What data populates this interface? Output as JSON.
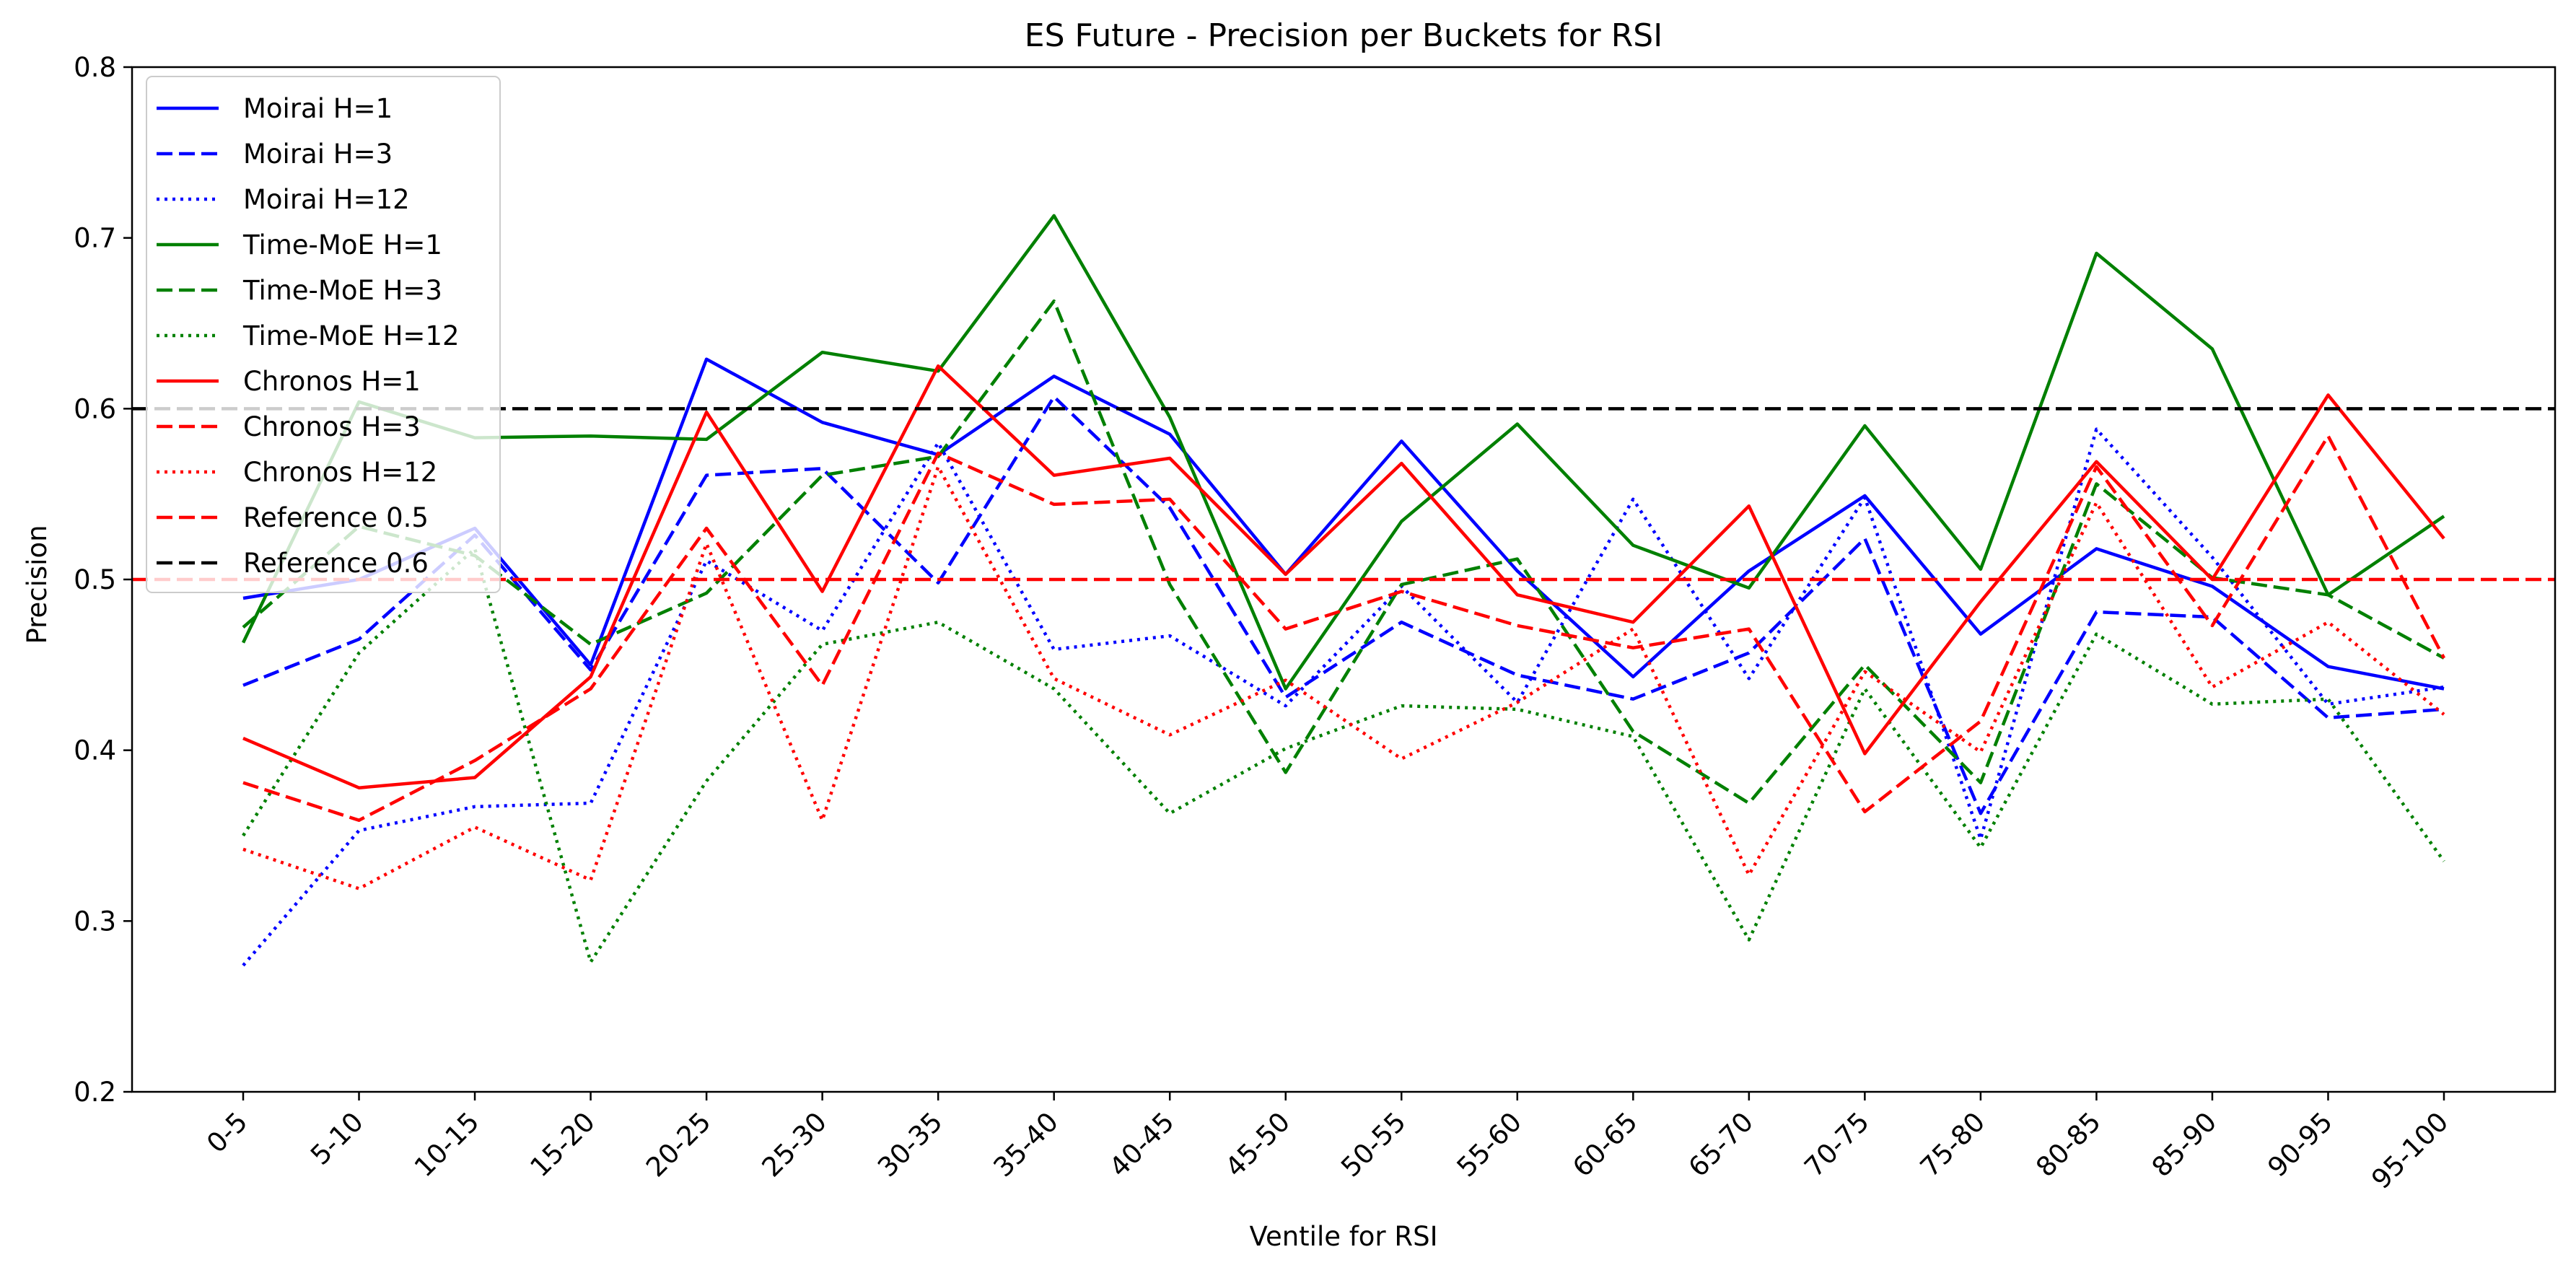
{
  "chart_data": {
    "type": "line",
    "title": "ES Future - Precision per Buckets for RSI",
    "xlabel": "Ventile for RSI",
    "ylabel": "Precision",
    "ylim": [
      0.2,
      0.8
    ],
    "yticks": [
      "0.2",
      "0.3",
      "0.4",
      "0.5",
      "0.6",
      "0.7",
      "0.8"
    ],
    "grid": false,
    "legend_position": "top-left",
    "categories": [
      "0-5",
      "5-10",
      "10-15",
      "15-20",
      "20-25",
      "25-30",
      "30-35",
      "35-40",
      "40-45",
      "45-50",
      "50-55",
      "55-60",
      "60-65",
      "65-70",
      "70-75",
      "75-80",
      "80-85",
      "85-90",
      "90-95",
      "95-100"
    ],
    "series": [
      {
        "name": "Moirai H=1",
        "color": "#0000ff",
        "style": "solid",
        "values": [
          0.489,
          0.5,
          0.53,
          0.45,
          0.629,
          0.592,
          0.573,
          0.619,
          0.585,
          0.503,
          0.581,
          0.505,
          0.443,
          0.505,
          0.549,
          0.468,
          0.518,
          0.496,
          0.449,
          0.436
        ]
      },
      {
        "name": "Moirai H=3",
        "color": "#0000ff",
        "style": "dashed",
        "values": [
          0.438,
          0.465,
          0.526,
          0.447,
          0.561,
          0.565,
          0.498,
          0.607,
          0.542,
          0.431,
          0.475,
          0.444,
          0.43,
          0.457,
          0.524,
          0.363,
          0.481,
          0.478,
          0.419,
          0.424
        ]
      },
      {
        "name": "Moirai H=12",
        "color": "#0000ff",
        "style": "dotted",
        "values": [
          0.274,
          0.353,
          0.367,
          0.369,
          0.511,
          0.47,
          0.58,
          0.459,
          0.467,
          0.426,
          0.496,
          0.428,
          0.547,
          0.442,
          0.548,
          0.348,
          0.588,
          0.513,
          0.427,
          0.437
        ]
      },
      {
        "name": "Time-MoE H=1",
        "color": "#008000",
        "style": "solid",
        "values": [
          0.463,
          0.604,
          0.583,
          0.584,
          0.582,
          0.633,
          0.622,
          0.713,
          0.595,
          0.436,
          0.534,
          0.591,
          0.52,
          0.495,
          0.59,
          0.506,
          0.691,
          0.635,
          0.491,
          0.537
        ]
      },
      {
        "name": "Time-MoE H=3",
        "color": "#008000",
        "style": "dashed",
        "values": [
          0.472,
          0.531,
          0.514,
          0.462,
          0.492,
          0.561,
          0.572,
          0.663,
          0.497,
          0.387,
          0.497,
          0.512,
          0.411,
          0.369,
          0.45,
          0.381,
          0.556,
          0.501,
          0.491,
          0.454
        ]
      },
      {
        "name": "Time-MoE H=12",
        "color": "#008000",
        "style": "dotted",
        "values": [
          0.35,
          0.457,
          0.518,
          0.276,
          0.382,
          0.462,
          0.475,
          0.436,
          0.363,
          0.401,
          0.426,
          0.424,
          0.408,
          0.289,
          0.436,
          0.343,
          0.468,
          0.427,
          0.43,
          0.335
        ]
      },
      {
        "name": "Chronos H=1",
        "color": "#ff0000",
        "style": "solid",
        "values": [
          0.407,
          0.378,
          0.384,
          0.443,
          0.598,
          0.493,
          0.625,
          0.561,
          0.571,
          0.503,
          0.568,
          0.491,
          0.475,
          0.543,
          0.398,
          0.487,
          0.569,
          0.5,
          0.608,
          0.524
        ]
      },
      {
        "name": "Chronos H=3",
        "color": "#ff0000",
        "style": "dashed",
        "values": [
          0.381,
          0.359,
          0.394,
          0.436,
          0.53,
          0.438,
          0.574,
          0.544,
          0.547,
          0.471,
          0.493,
          0.473,
          0.46,
          0.471,
          0.364,
          0.417,
          0.566,
          0.473,
          0.584,
          0.454
        ]
      },
      {
        "name": "Chronos H=12",
        "color": "#ff0000",
        "style": "dotted",
        "values": [
          0.342,
          0.319,
          0.355,
          0.324,
          0.521,
          0.359,
          0.566,
          0.442,
          0.409,
          0.441,
          0.395,
          0.428,
          0.471,
          0.327,
          0.446,
          0.399,
          0.545,
          0.437,
          0.475,
          0.421
        ]
      }
    ],
    "reference_lines": [
      {
        "name": "Reference 0.5",
        "value": 0.5,
        "color": "#ff0000",
        "style": "dashed"
      },
      {
        "name": "Reference 0.6",
        "value": 0.6,
        "color": "#000000",
        "style": "dashed"
      }
    ]
  }
}
